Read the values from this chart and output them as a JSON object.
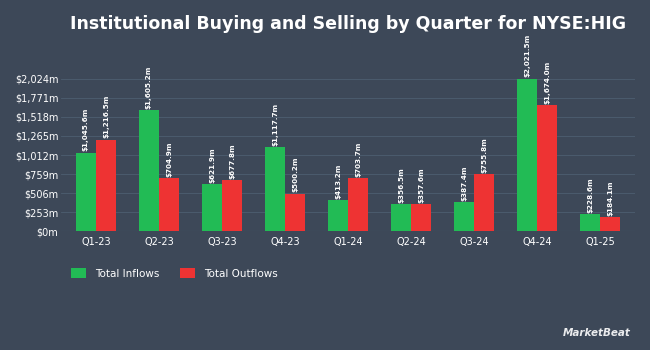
{
  "title": "Institutional Buying and Selling by Quarter for NYSE:HIG",
  "quarters": [
    "Q1-23",
    "Q2-23",
    "Q3-23",
    "Q4-23",
    "Q1-24",
    "Q2-24",
    "Q3-24",
    "Q4-24",
    "Q1-25"
  ],
  "inflows": [
    1045.6,
    1605.2,
    621.9,
    1117.7,
    413.2,
    356.5,
    387.4,
    2021.5,
    228.6
  ],
  "outflows": [
    1216.5,
    704.9,
    677.8,
    500.2,
    703.7,
    357.6,
    755.8,
    1674.0,
    184.1
  ],
  "inflow_labels": [
    "$1,045.6m",
    "$1,605.2m",
    "$621.9m",
    "$1,117.7m",
    "$413.2m",
    "$356.5m",
    "$387.4m",
    "$2,021.5m",
    "$228.6m"
  ],
  "outflow_labels": [
    "$1,216.5m",
    "$704.9m",
    "$677.8m",
    "$500.2m",
    "$703.7m",
    "$357.6m",
    "$755.8m",
    "$1,674.0m",
    "$184.1m"
  ],
  "inflow_color": "#22bb55",
  "outflow_color": "#ee3333",
  "background_color": "#3d4858",
  "text_color": "#ffffff",
  "grid_color": "#4d5e70",
  "bar_width": 0.32,
  "ylim": [
    0,
    2500
  ],
  "yticks": [
    0,
    253,
    506,
    759,
    1012,
    1265,
    1518,
    1771,
    2024
  ],
  "ytick_labels": [
    "$0m",
    "$253m",
    "$506m",
    "$759m",
    "$1,012m",
    "$1,265m",
    "$1,518m",
    "$1,771m",
    "$2,024m"
  ],
  "legend_inflow": "Total Inflows",
  "legend_outflow": "Total Outflows",
  "title_fontsize": 12.5,
  "label_fontsize": 5.2,
  "tick_fontsize": 7.0,
  "legend_fontsize": 7.5
}
